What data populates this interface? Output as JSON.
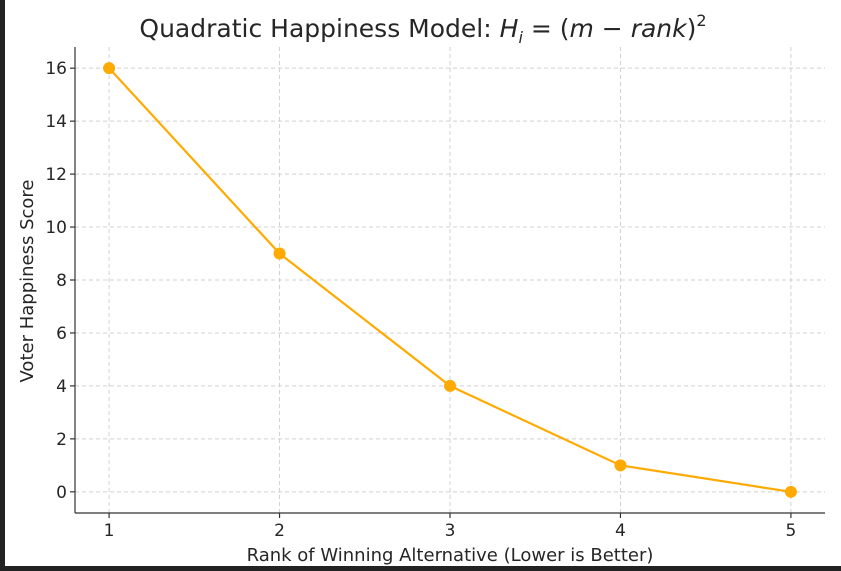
{
  "chart_data": {
    "type": "line",
    "title_text": "Quadratic Happiness Model: ",
    "title_formula": {
      "h": "H",
      "sub": "i",
      "mid": " = (",
      "m": "m",
      "minus": " − ",
      "rank": "rank",
      "close": ")",
      "sup": "2"
    },
    "xlabel": "Rank of Winning Alternative (Lower is Better)",
    "ylabel": "Voter Happiness Score",
    "x": [
      1,
      2,
      3,
      4,
      5
    ],
    "series": [
      {
        "values": [
          16,
          9,
          4,
          1,
          0
        ],
        "color": "#FFAA00"
      }
    ],
    "xticks": [
      "1",
      "2",
      "3",
      "4",
      "5"
    ],
    "yticks": [
      "0",
      "2",
      "4",
      "6",
      "8",
      "10",
      "12",
      "14",
      "16"
    ],
    "xlim": [
      0.8,
      5.2
    ],
    "ylim": [
      -0.8,
      16.8
    ],
    "grid": true,
    "marker": "circle"
  }
}
